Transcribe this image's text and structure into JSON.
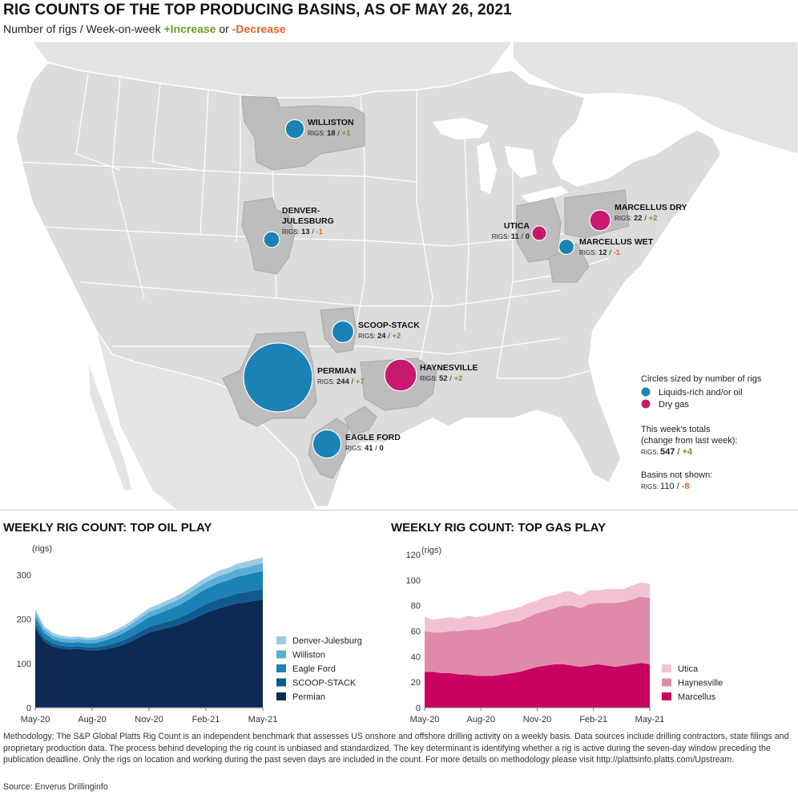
{
  "header": {
    "title": "RIG COUNTS OF THE TOP PRODUCING BASINS, AS OF MAY 26, 2021",
    "subtitle_prefix": "Number of rigs / Week-on-week ",
    "subtitle_increase": "+Increase",
    "subtitle_or": " or ",
    "subtitle_decrease": "-Decrease"
  },
  "colors": {
    "liquids": "#1a82b4",
    "dry_gas": "#c8196e",
    "increase": "#6a9a2c",
    "decrease": "#e8622b",
    "map_land": "#dcdcdc",
    "basin_region": "#bdbdbd"
  },
  "map": {
    "rigs_prefix": "RIGS: ",
    "basins": [
      {
        "id": "williston",
        "name": [
          "WILLISTON"
        ],
        "rigs": "18",
        "change": "+1",
        "dir": "inc",
        "type": "liquids"
      },
      {
        "id": "denver-julesburg",
        "name": [
          "DENVER-",
          "JULESBURG"
        ],
        "rigs": "13",
        "change": "-1",
        "dir": "dec",
        "type": "liquids"
      },
      {
        "id": "scoop-stack",
        "name": [
          "SCOOP-STACK"
        ],
        "rigs": "24",
        "change": "+2",
        "dir": "inc",
        "type": "liquids"
      },
      {
        "id": "permian",
        "name": [
          "PERMIAN"
        ],
        "rigs": "244",
        "change": "+7",
        "dir": "inc",
        "type": "liquids"
      },
      {
        "id": "haynesville",
        "name": [
          "HAYNESVILLE"
        ],
        "rigs": "52",
        "change": "+2",
        "dir": "inc",
        "type": "dry_gas"
      },
      {
        "id": "eagle-ford",
        "name": [
          "EAGLE FORD"
        ],
        "rigs": "41",
        "change": "0",
        "dir": "none",
        "type": "liquids"
      },
      {
        "id": "utica",
        "name": [
          "UTICA"
        ],
        "rigs": "11",
        "change": "0",
        "dir": "none",
        "type": "dry_gas"
      },
      {
        "id": "marcellus-dry",
        "name": [
          "MARCELLUS DRY"
        ],
        "rigs": "22",
        "change": "+2",
        "dir": "inc",
        "type": "dry_gas"
      },
      {
        "id": "marcellus-wet",
        "name": [
          "MARCELLUS WET"
        ],
        "rigs": "12",
        "change": "-1",
        "dir": "dec",
        "type": "liquids"
      }
    ],
    "legend": {
      "heading": "Circles sized by number of rigs",
      "liquids_label": "Liquids-rich and/or oil",
      "dry_gas_label": "Dry gas",
      "totals_line1": "This week's totals",
      "totals_line2": "(change from last week):",
      "totals_rigs": "547",
      "totals_change": "+4",
      "not_shown_heading": "Basins not shown:",
      "not_shown_rigs": "110",
      "not_shown_change": "-8"
    }
  },
  "chart_data": [
    {
      "type": "area",
      "title": "WEEKLY RIG COUNT: TOP OIL PLAY",
      "ylabel": "(rigs)",
      "ylim": [
        0,
        350
      ],
      "yticks": [
        0,
        100,
        200,
        300
      ],
      "xticks": [
        "May-20",
        "Aug-20",
        "Nov-20",
        "Feb-21",
        "May-21"
      ],
      "x": [
        "2020-05-22",
        "2020-06-05",
        "2020-06-19",
        "2020-07-03",
        "2020-07-17",
        "2020-07-31",
        "2020-08-14",
        "2020-08-28",
        "2020-09-11",
        "2020-09-25",
        "2020-10-09",
        "2020-10-23",
        "2020-11-06",
        "2020-11-20",
        "2020-12-04",
        "2020-12-18",
        "2021-01-01",
        "2021-01-15",
        "2021-01-29",
        "2021-02-12",
        "2021-02-26",
        "2021-03-12",
        "2021-03-26",
        "2021-04-09",
        "2021-04-23",
        "2021-05-07",
        "2021-05-21"
      ],
      "stacked": true,
      "series": [
        {
          "name": "Permian",
          "color": "#0d2a55",
          "values": [
            180,
            150,
            138,
            134,
            132,
            133,
            130,
            130,
            132,
            136,
            142,
            150,
            160,
            170,
            175,
            180,
            185,
            192,
            200,
            210,
            218,
            225,
            230,
            236,
            238,
            242,
            244
          ]
        },
        {
          "name": "SCOOP-STACK",
          "color": "#105a8f",
          "values": [
            10,
            8,
            7,
            6,
            6,
            6,
            6,
            7,
            8,
            9,
            10,
            11,
            12,
            13,
            13,
            14,
            15,
            16,
            18,
            19,
            20,
            21,
            21,
            22,
            23,
            23,
            24
          ]
        },
        {
          "name": "Eagle Ford",
          "color": "#1a82b4",
          "values": [
            15,
            11,
            10,
            9,
            9,
            9,
            9,
            10,
            12,
            14,
            16,
            18,
            20,
            22,
            24,
            26,
            28,
            30,
            32,
            34,
            35,
            36,
            37,
            38,
            39,
            40,
            41
          ]
        },
        {
          "name": "Williston",
          "color": "#5aaed6",
          "values": [
            10,
            9,
            8,
            8,
            8,
            8,
            8,
            8,
            8,
            9,
            9,
            10,
            11,
            12,
            12,
            13,
            13,
            14,
            15,
            15,
            16,
            16,
            16,
            17,
            17,
            17,
            18
          ]
        },
        {
          "name": "Denver-Julesburg",
          "color": "#9ecbe4",
          "values": [
            8,
            7,
            6,
            6,
            5,
            5,
            5,
            5,
            6,
            6,
            7,
            7,
            8,
            8,
            9,
            9,
            10,
            10,
            10,
            11,
            11,
            12,
            12,
            12,
            13,
            13,
            13
          ]
        }
      ]
    },
    {
      "type": "area",
      "title": "WEEKLY RIG COUNT: TOP GAS PLAY",
      "ylabel": "(rigs)",
      "ylim": [
        0,
        120
      ],
      "yticks": [
        0,
        20,
        40,
        60,
        80,
        100,
        120
      ],
      "xticks": [
        "May-20",
        "Aug-20",
        "Nov-20",
        "Feb-21",
        "May-21"
      ],
      "x": [
        "2020-05-22",
        "2020-06-05",
        "2020-06-19",
        "2020-07-03",
        "2020-07-17",
        "2020-07-31",
        "2020-08-14",
        "2020-08-28",
        "2020-09-11",
        "2020-09-25",
        "2020-10-09",
        "2020-10-23",
        "2020-11-06",
        "2020-11-20",
        "2020-12-04",
        "2020-12-18",
        "2021-01-01",
        "2021-01-15",
        "2021-01-29",
        "2021-02-12",
        "2021-02-26",
        "2021-03-12",
        "2021-03-26",
        "2021-04-09",
        "2021-04-23",
        "2021-05-07",
        "2021-05-21"
      ],
      "stacked": true,
      "series": [
        {
          "name": "Marcellus",
          "color": "#c8005f",
          "values": [
            28,
            28,
            27,
            27,
            26,
            26,
            25,
            25,
            25,
            26,
            27,
            28,
            30,
            32,
            33,
            34,
            34,
            33,
            32,
            33,
            34,
            33,
            32,
            33,
            34,
            35,
            34
          ]
        },
        {
          "name": "Haynesville",
          "color": "#e08aab",
          "values": [
            32,
            31,
            32,
            33,
            34,
            35,
            36,
            37,
            38,
            39,
            40,
            40,
            41,
            42,
            43,
            44,
            46,
            47,
            46,
            48,
            48,
            49,
            50,
            50,
            51,
            52,
            52
          ]
        },
        {
          "name": "Utica",
          "color": "#f2c2d4",
          "values": [
            11,
            10,
            11,
            11,
            10,
            11,
            10,
            10,
            11,
            11,
            10,
            11,
            11,
            10,
            11,
            10,
            11,
            11,
            10,
            11,
            10,
            11,
            11,
            10,
            11,
            11,
            11
          ]
        }
      ]
    }
  ],
  "footer": {
    "methodology": "Methodology: The S&P Global Platts Rig Count is an independent benchmark that assesses US onshore and offshore drilling activity on a weekly basis. Data sources include drilling contractors, state filings and proprietary production data. The process behind developing the rig count is unbiased and standardized. The key determinant is identifying whether a rig is active during the seven-day window preceding the publication deadline. Only the rigs on location and working during the past seven days are included in the count. For more details on methodology please visit http://plattsinfo.platts.com/Upstream.",
    "source": "Source: Enverus Drillinginfo"
  }
}
